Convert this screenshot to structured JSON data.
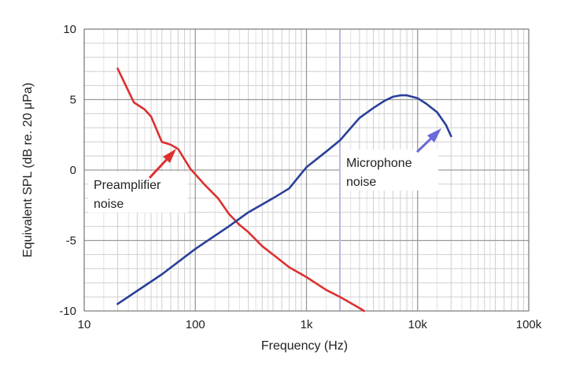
{
  "chart_data": {
    "type": "line",
    "title": "",
    "xlabel": "Frequency (Hz)",
    "ylabel": "Equivalent SPL (dB re. 20 μPa)",
    "x_scale": "log",
    "xlim": [
      10,
      100000
    ],
    "ylim": [
      -10,
      10
    ],
    "grid": true,
    "x_ticks": [
      10,
      100,
      1000,
      10000,
      100000
    ],
    "x_tick_labels": [
      "10",
      "100",
      "1k",
      "10k",
      "100k"
    ],
    "y_ticks": [
      10,
      5,
      0,
      -5,
      -10
    ],
    "y_tick_labels": [
      "10",
      "5",
      "0",
      "-5",
      "-10"
    ],
    "series": [
      {
        "name": "Preamplifier noise",
        "color": "#dd3030",
        "x": [
          20,
          23,
          28,
          35,
          40,
          50,
          60,
          70,
          90,
          120,
          160,
          200,
          250,
          300,
          400,
          500,
          700,
          1000,
          1500,
          2000,
          3000,
          3300
        ],
        "y": [
          7.2,
          6.2,
          4.8,
          4.3,
          3.8,
          2.0,
          1.8,
          1.5,
          0.1,
          -1.0,
          -2.0,
          -3.1,
          -3.9,
          -4.4,
          -5.4,
          -6.0,
          -6.9,
          -7.6,
          -8.5,
          -9.0,
          -9.8,
          -10.0
        ]
      },
      {
        "name": "Microphone noise",
        "color": "#2a3f9a",
        "x": [
          20,
          50,
          100,
          200,
          300,
          500,
          700,
          1000,
          1500,
          2000,
          3000,
          4000,
          5000,
          6000,
          7000,
          8000,
          10000,
          12000,
          15000,
          18000,
          20000
        ],
        "y": [
          -9.5,
          -7.4,
          -5.6,
          -4.0,
          -3.0,
          -2.0,
          -1.3,
          0.2,
          1.3,
          2.1,
          3.7,
          4.4,
          4.9,
          5.2,
          5.3,
          5.3,
          5.1,
          4.7,
          4.1,
          3.2,
          2.4
        ]
      }
    ],
    "annotations": [
      {
        "text_lines": [
          "Preamplifier",
          "noise"
        ],
        "arrow_color": "#dd3030"
      },
      {
        "text_lines": [
          "Microphone",
          "noise"
        ],
        "arrow_color": "#6a6ad8"
      }
    ],
    "reference_line": {
      "x": 2000,
      "color": "#b8bcdf"
    }
  }
}
